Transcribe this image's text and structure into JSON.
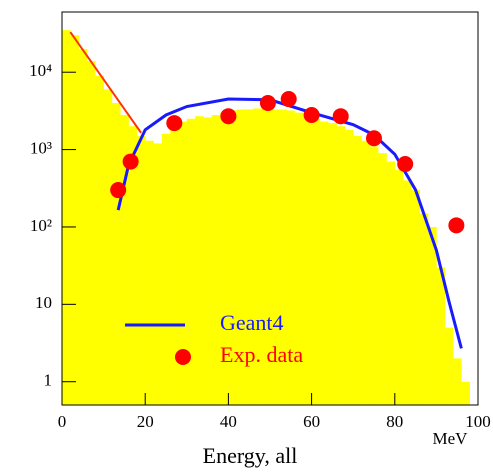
{
  "chart_data": {
    "type": "histogram",
    "xlabel": "Energy, all",
    "xunit": "MeV",
    "xlim": [
      0,
      100
    ],
    "xticks": [
      0,
      20,
      40,
      60,
      80,
      100
    ],
    "ylim": [
      0.5,
      60000
    ],
    "yscale": "log",
    "yticks": [
      1,
      10,
      {
        "value": 100,
        "label": "10²"
      },
      {
        "value": 1000,
        "label": "10³"
      },
      {
        "value": 10000,
        "label": "10⁴"
      }
    ],
    "legend": "lower left",
    "histogram": {
      "color": "#ffff00",
      "bins": [
        0,
        2,
        4,
        6,
        8,
        10,
        12,
        14,
        16,
        18,
        20,
        22,
        24,
        26,
        28,
        30,
        32,
        34,
        36,
        38,
        40,
        42,
        44,
        46,
        48,
        50,
        52,
        54,
        56,
        58,
        60,
        62,
        64,
        66,
        68,
        70,
        72,
        74,
        76,
        78,
        80,
        82,
        84,
        86,
        88,
        90,
        92,
        94,
        96,
        98
      ],
      "counts": [
        35000,
        30000,
        20000,
        14000,
        9000,
        6000,
        4000,
        2800,
        2000,
        1500,
        1300,
        1200,
        1600,
        2000,
        2300,
        2500,
        2700,
        2600,
        2800,
        3000,
        3200,
        3300,
        3300,
        3400,
        3400,
        3300,
        3300,
        3200,
        3000,
        2800,
        2500,
        2300,
        2200,
        2000,
        1800,
        1500,
        1300,
        1100,
        900,
        700,
        550,
        400,
        300,
        150,
        100,
        30,
        5,
        2,
        1
      ]
    },
    "series": [
      {
        "name": "Geant4",
        "kind": "line",
        "color": "#1a1aff",
        "x": [
          13.5,
          16,
          20,
          25,
          30,
          40,
          50,
          60,
          70,
          75,
          80,
          85,
          90,
          93,
          96
        ],
        "values": [
          165,
          630,
          1800,
          2800,
          3600,
          4500,
          4400,
          3000,
          2100,
          1550,
          870,
          300,
          50,
          11,
          2.7
        ]
      },
      {
        "name": "Exp. data",
        "kind": "scatter",
        "color": "#ff0000",
        "x": [
          13.5,
          16.5,
          27,
          40,
          49.5,
          54.5,
          60,
          67,
          75,
          82.5,
          94.8
        ],
        "values": [
          300,
          700,
          2200,
          2700,
          4000,
          4500,
          2800,
          2700,
          1400,
          650,
          105
        ]
      },
      {
        "kind": "line",
        "color": "#ff3300",
        "x": [
          2,
          19
        ],
        "values": [
          33000,
          1650
        ]
      }
    ]
  }
}
